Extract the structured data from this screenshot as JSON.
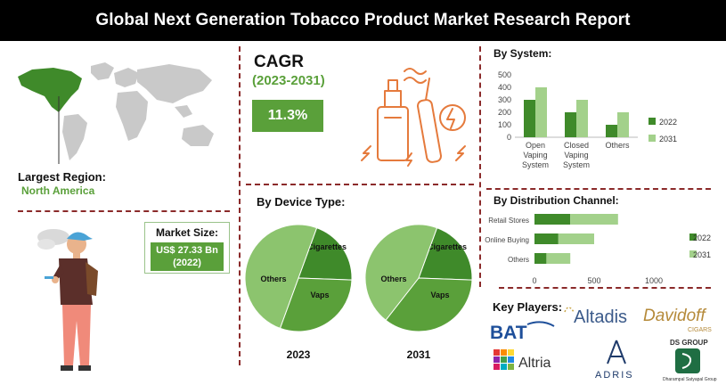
{
  "header": {
    "title": "Global Next Generation Tobacco Product Market Research Report"
  },
  "region": {
    "label": "Largest Region:",
    "value": "North America"
  },
  "market_size": {
    "label": "Market Size:",
    "value": "US$ 27.33 Bn",
    "year": "(2022)"
  },
  "cagr": {
    "title": "CAGR",
    "years": "(2023-2031)",
    "value": "11.3%"
  },
  "device": {
    "title": "By Device Type:"
  },
  "system": {
    "title": "By System:"
  },
  "distribution": {
    "title": "By Distribution Channel:"
  },
  "players": {
    "title": "Key Players:",
    "logos": {
      "altadis": "Altadis",
      "davidoff": "Davidoff",
      "davidoff_sub": "CIGARS",
      "bat": "BAT",
      "altria": "Altria",
      "adris": "ADRIS",
      "ds": "DS GROUP",
      "ds_sub": "Dharampal Satyapal Group"
    }
  },
  "colors": {
    "dark_green": "#3f8a2a",
    "mid_green": "#5aa03a",
    "light_green": "#a3d18b",
    "divider": "#8b2a2a"
  },
  "chart_data": [
    {
      "type": "bar",
      "title": "By System:",
      "categories": [
        "Open Vaping System",
        "Closed Vaping System",
        "Others"
      ],
      "ylim": [
        0,
        500
      ],
      "yticks": [
        0,
        100,
        200,
        300,
        400,
        500
      ],
      "series": [
        {
          "name": "2022",
          "values": [
            300,
            200,
            100
          ],
          "color": "#3f8a2a"
        },
        {
          "name": "2031",
          "values": [
            400,
            300,
            200
          ],
          "color": "#a3d18b"
        }
      ],
      "legend": "right"
    },
    {
      "type": "bar",
      "title": "By Distribution Channel:",
      "orientation": "horizontal",
      "stacked": true,
      "categories": [
        "Retail Stores",
        "Online Buying",
        "Others"
      ],
      "xlim": [
        0,
        1000
      ],
      "xticks": [
        0,
        500,
        1000
      ],
      "series": [
        {
          "name": "2022",
          "values": [
            300,
            200,
            100
          ],
          "color": "#3f8a2a"
        },
        {
          "name": "2031",
          "values": [
            400,
            300,
            200
          ],
          "color": "#a3d18b"
        }
      ],
      "legend": "right"
    },
    {
      "type": "pie",
      "title": "2023",
      "labels": [
        "e-Cigarettes",
        "Vaps",
        "Others"
      ],
      "values": [
        20,
        30,
        50
      ],
      "colors": [
        "#3f8a2a",
        "#5aa03a",
        "#8cc46e"
      ]
    },
    {
      "type": "pie",
      "title": "2031",
      "labels": [
        "e-Cigarettes",
        "Vaps",
        "Others"
      ],
      "values": [
        20,
        35,
        45
      ],
      "colors": [
        "#3f8a2a",
        "#5aa03a",
        "#8cc46e"
      ]
    }
  ]
}
